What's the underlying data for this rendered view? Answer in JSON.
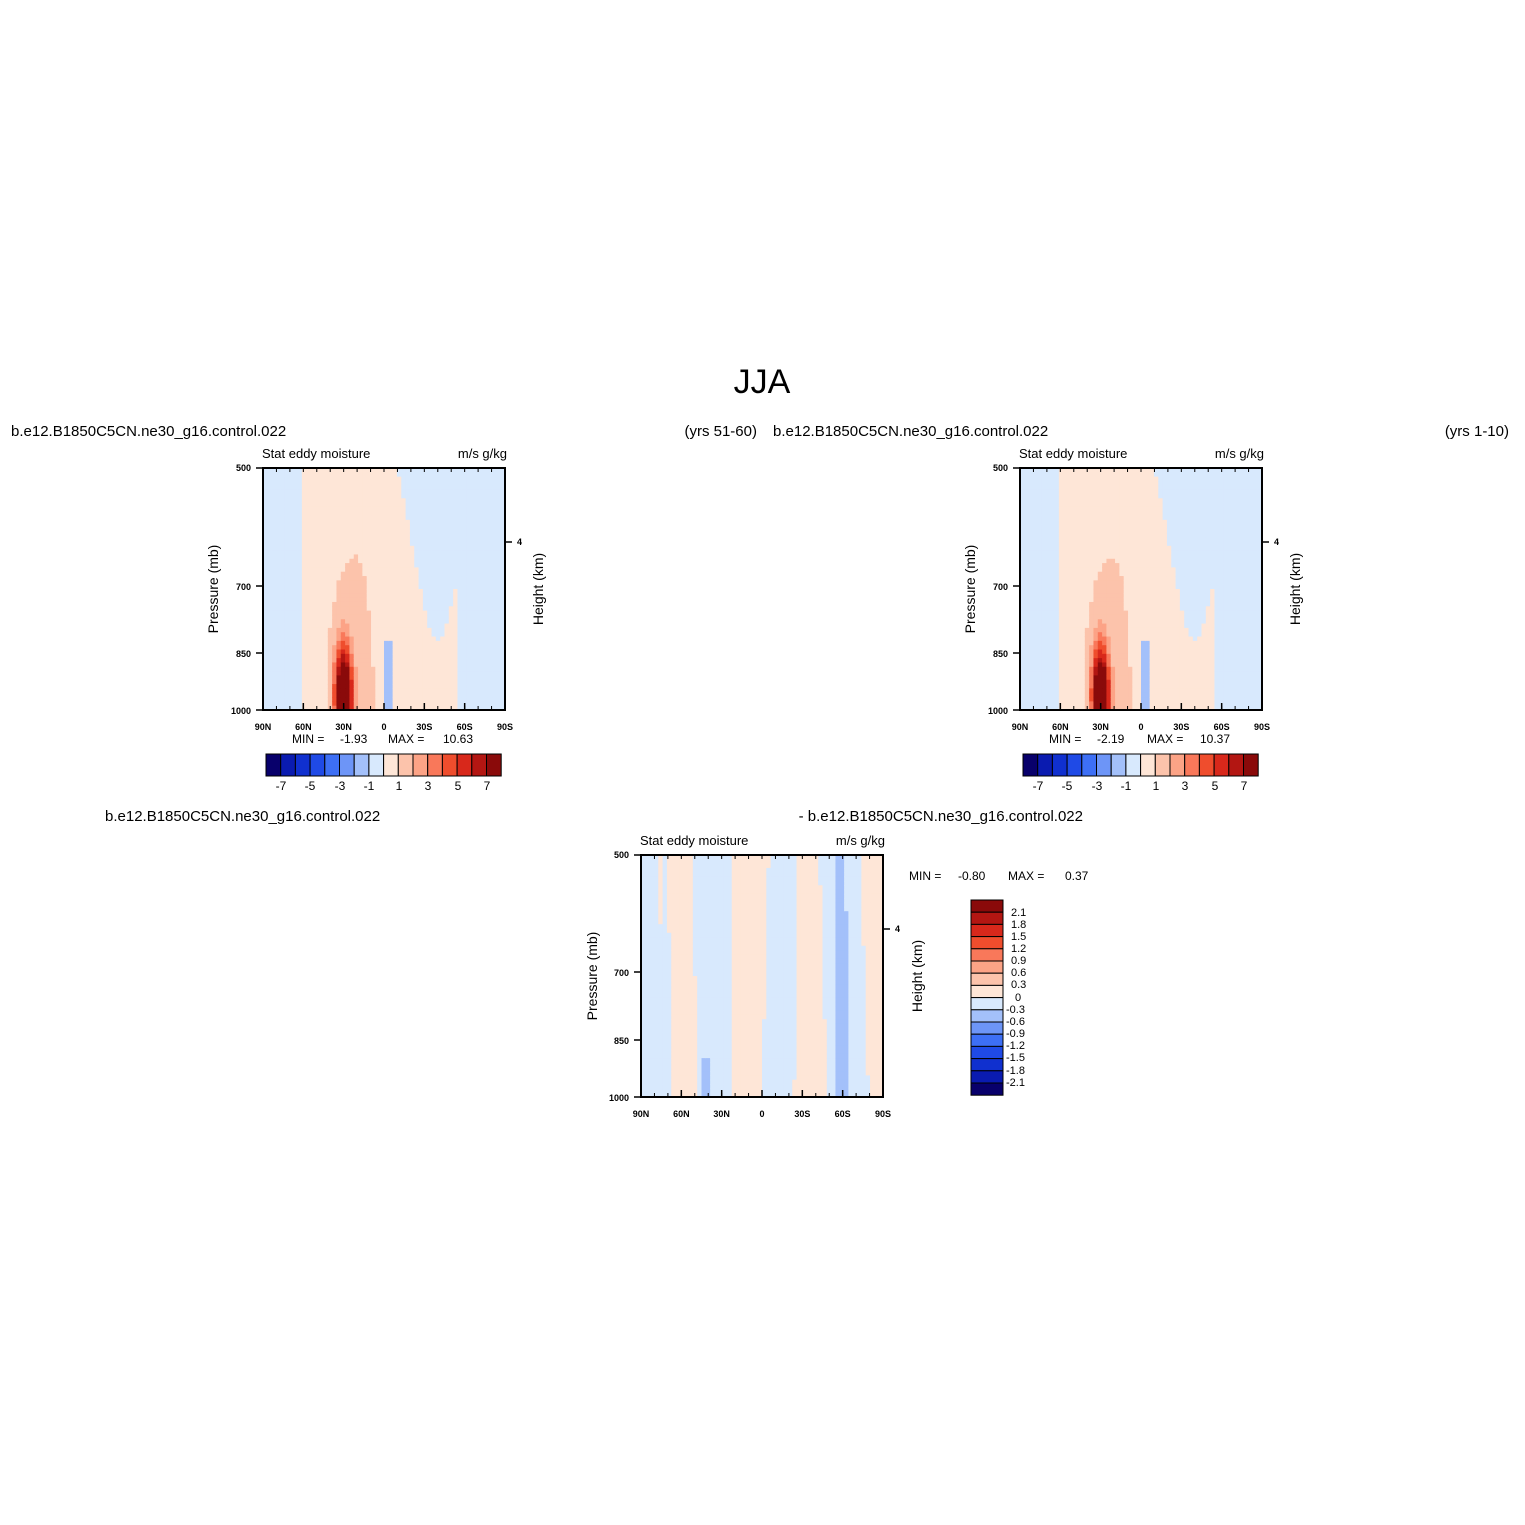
{
  "page": {
    "title": "JJA"
  },
  "colors": {
    "neg": [
      "#08006b",
      "#0a1bb0",
      "#1030cf",
      "#1f4ae6",
      "#3d6ff5",
      "#6d95f7",
      "#a3c0fa",
      "#d8e9fd"
    ],
    "pos": [
      "#fee6d7",
      "#fcc3ab",
      "#fca386",
      "#f9785a",
      "#ef4d2d",
      "#d8281b",
      "#b31612",
      "#8a0a0a"
    ]
  },
  "chart_data": [
    {
      "type": "contour",
      "left_title": "b.e12.B1850C5CN.ne30_g16.control.022",
      "right_title": "(yrs 51-60)",
      "center_left": "Stat eddy moisture",
      "center_right": "m/s g/kg",
      "ylabel": "Pressure (mb)",
      "ylabel_right": "Height (km)",
      "yticks": [
        "500",
        "700",
        "850",
        "1000"
      ],
      "yticks_right": [
        "4"
      ],
      "xticks": [
        "90N",
        "60N",
        "30N",
        "0",
        "30S",
        "60S",
        "90S"
      ],
      "min_label": "MIN =",
      "min": "-1.93",
      "max_label": "MAX =",
      "max": "10.63",
      "levels": [
        -7,
        -6,
        -5,
        -4,
        -3,
        -2,
        -1,
        0,
        1,
        2,
        3,
        4,
        5,
        6,
        7
      ],
      "colorbar_labels": [
        "-7",
        "-5",
        "-3",
        "-1",
        "1",
        "3",
        "5",
        "7"
      ],
      "peak": {
        "lat": 30,
        "pressure": 950,
        "value": 10.63
      }
    },
    {
      "type": "contour",
      "left_title": "b.e12.B1850C5CN.ne30_g16.control.022",
      "right_title": "(yrs 1-10)",
      "center_left": "Stat eddy moisture",
      "center_right": "m/s g/kg",
      "ylabel": "Pressure (mb)",
      "ylabel_right": "Height (km)",
      "yticks": [
        "500",
        "700",
        "850",
        "1000"
      ],
      "yticks_right": [
        "4"
      ],
      "xticks": [
        "90N",
        "60N",
        "30N",
        "0",
        "30S",
        "60S",
        "90S"
      ],
      "min_label": "MIN =",
      "min": "-2.19",
      "max_label": "MAX =",
      "max": "10.37",
      "levels": [
        -7,
        -6,
        -5,
        -4,
        -3,
        -2,
        -1,
        0,
        1,
        2,
        3,
        4,
        5,
        6,
        7
      ],
      "colorbar_labels": [
        "-7",
        "-5",
        "-3",
        "-1",
        "1",
        "3",
        "5",
        "7"
      ],
      "peak": {
        "lat": 30,
        "pressure": 950,
        "value": 10.37
      }
    },
    {
      "type": "contour",
      "left_title": "b.e12.B1850C5CN.ne30_g16.control.022",
      "right_title": "- b.e12.B1850C5CN.ne30_g16.control.022",
      "center_left": "Stat eddy moisture",
      "center_right": "m/s g/kg",
      "ylabel": "Pressure (mb)",
      "ylabel_right": "Height (km)",
      "yticks": [
        "500",
        "700",
        "850",
        "1000"
      ],
      "yticks_right": [
        "4"
      ],
      "xticks": [
        "90N",
        "60N",
        "30N",
        "0",
        "30S",
        "60S",
        "90S"
      ],
      "min_label": "MIN =",
      "min": "-0.80",
      "max_label": "MAX =",
      "max": "0.37",
      "levels": [
        -2.1,
        -1.8,
        -1.5,
        -1.2,
        -0.9,
        -0.6,
        -0.3,
        0,
        0.3,
        0.6,
        0.9,
        1.2,
        1.5,
        1.8,
        2.1
      ],
      "colorbar_labels": [
        "2.1",
        "1.8",
        "1.5",
        "1.2",
        "0.9",
        "0.6",
        "0.3",
        "0",
        "-0.3",
        "-0.6",
        "-0.9",
        "-1.2",
        "-1.5",
        "-1.8",
        "-2.1"
      ]
    }
  ]
}
